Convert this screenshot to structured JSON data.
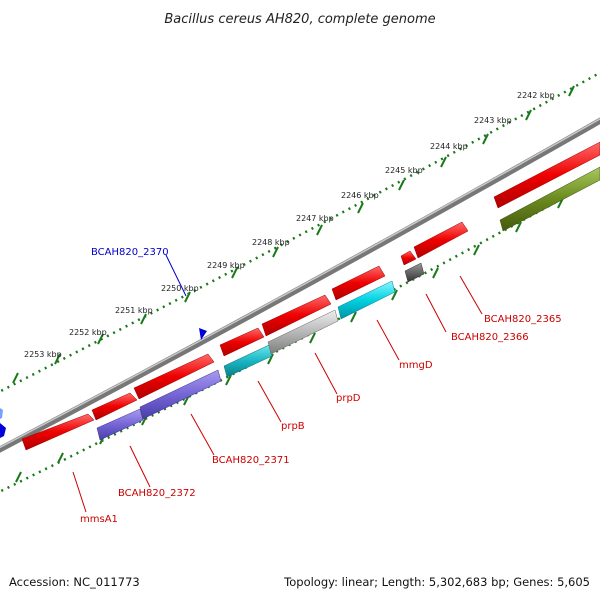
{
  "title": "Bacillus cereus AH820, complete genome",
  "scale_ticks": [
    "2242 kbp",
    "2243 kbp",
    "2244 kbp",
    "2245 kbp",
    "2246 kbp",
    "2247 kbp",
    "2248 kbp",
    "2249 kbp",
    "2250 kbp",
    "2251 kbp",
    "2252 kbp",
    "2253 kbp"
  ],
  "gene_labels": {
    "mmsA1": "mmsA1",
    "BCAH820_2372": "BCAH820_2372",
    "BCAH820_2371": "BCAH820_2371",
    "prpB": "prpB",
    "prpD": "prpD",
    "mmgD": "mmgD",
    "BCAH820_2366": "BCAH820_2366",
    "BCAH820_2365": "BCAH820_2365",
    "BCAH820_2370": "BCAH820_2370"
  },
  "footer": {
    "accession": "Accession: NC_011773",
    "topology": "Topology: linear; Length: 5,302,683 bp; Genes: 5,605"
  },
  "colors": {
    "red": "#ee0000",
    "blue_purple": "#7a6ad8",
    "cyan": "#00c8d8",
    "gray": "#aaaaaa",
    "olive": "#6b8a1e",
    "blue": "#0000dd",
    "tick_green": "#1a7a1a",
    "backbone": "#777777"
  }
}
